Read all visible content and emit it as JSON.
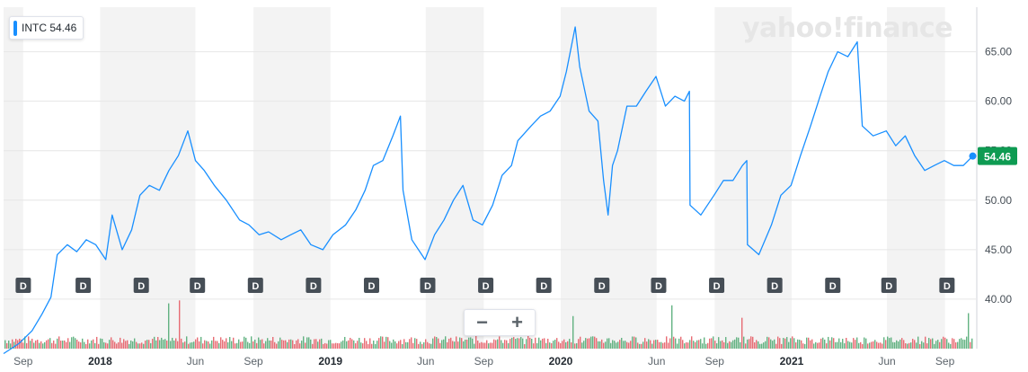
{
  "legend": {
    "label": "INTC 54.46"
  },
  "watermark": "yahoo!finance",
  "last_price_label": "54.46",
  "zoom": {
    "minus": "−",
    "plus": "+"
  },
  "colors": {
    "line": "#188fff",
    "shade": "#f3f3f3",
    "grid": "#e6e6e6",
    "price_badge": "#0e9b52",
    "dividend_marker": "#464e56",
    "volume_up": "#48a66c",
    "volume_down": "#e4525c"
  },
  "chart_data": {
    "type": "line",
    "title": "",
    "series": [
      {
        "name": "INTC",
        "x": [
          "2017-08-01",
          "2017-08-25",
          "2017-09-15",
          "2017-10-01",
          "2017-10-15",
          "2017-10-25",
          "2017-11-10",
          "2017-11-25",
          "2017-12-10",
          "2017-12-25",
          "2018-01-10",
          "2018-01-20",
          "2018-02-05",
          "2018-02-20",
          "2018-03-05",
          "2018-03-20",
          "2018-04-05",
          "2018-04-20",
          "2018-05-05",
          "2018-05-20",
          "2018-06-01",
          "2018-06-15",
          "2018-07-01",
          "2018-07-20",
          "2018-08-10",
          "2018-08-25",
          "2018-09-10",
          "2018-09-25",
          "2018-10-15",
          "2018-10-30",
          "2018-11-15",
          "2018-12-01",
          "2018-12-20",
          "2019-01-05",
          "2019-01-25",
          "2019-02-10",
          "2019-02-25",
          "2019-03-10",
          "2019-03-25",
          "2019-04-10",
          "2019-04-22",
          "2019-04-26",
          "2019-05-10",
          "2019-05-31",
          "2019-06-15",
          "2019-06-30",
          "2019-07-15",
          "2019-07-30",
          "2019-08-15",
          "2019-08-30",
          "2019-09-15",
          "2019-09-30",
          "2019-10-15",
          "2019-10-25",
          "2019-11-15",
          "2019-11-30",
          "2019-12-15",
          "2019-12-31",
          "2020-01-10",
          "2020-01-24",
          "2020-01-31",
          "2020-02-15",
          "2020-02-29",
          "2020-03-09",
          "2020-03-16",
          "2020-03-23",
          "2020-03-31",
          "2020-04-15",
          "2020-04-30",
          "2020-05-15",
          "2020-05-31",
          "2020-06-15",
          "2020-06-30",
          "2020-07-15",
          "2020-07-23",
          "2020-07-24",
          "2020-08-10",
          "2020-08-31",
          "2020-09-15",
          "2020-09-30",
          "2020-10-15",
          "2020-10-22",
          "2020-10-23",
          "2020-11-10",
          "2020-11-30",
          "2020-12-15",
          "2020-12-31",
          "2021-01-15",
          "2021-01-31",
          "2021-02-15",
          "2021-02-28",
          "2021-03-15",
          "2021-03-31",
          "2021-04-15",
          "2021-04-23",
          "2021-05-10",
          "2021-05-31",
          "2021-06-15",
          "2021-06-30",
          "2021-07-15",
          "2021-07-31",
          "2021-08-15",
          "2021-08-31",
          "2021-09-15",
          "2021-09-30",
          "2021-10-15"
        ],
        "values": [
          34.5,
          35.5,
          36.8,
          38.5,
          40.2,
          44.5,
          45.5,
          44.8,
          46.0,
          45.5,
          44.0,
          48.5,
          45.0,
          47.0,
          50.5,
          51.5,
          51.0,
          53.0,
          54.5,
          57.0,
          54.0,
          53.0,
          51.5,
          50.0,
          48.0,
          47.5,
          46.5,
          46.8,
          46.0,
          46.5,
          47.0,
          45.5,
          45.0,
          46.5,
          47.5,
          49.0,
          51.0,
          53.5,
          54.0,
          56.5,
          58.5,
          51.0,
          46.0,
          44.0,
          46.5,
          48.0,
          50.0,
          51.5,
          48.0,
          47.5,
          49.5,
          52.5,
          53.5,
          56.0,
          57.5,
          58.5,
          59.0,
          60.5,
          63.0,
          67.5,
          63.5,
          59.0,
          58.0,
          52.0,
          48.5,
          53.5,
          55.0,
          59.5,
          59.5,
          61.0,
          62.5,
          59.5,
          60.5,
          60.0,
          61.0,
          49.5,
          48.5,
          50.5,
          52.0,
          52.0,
          53.5,
          54.0,
          45.5,
          44.5,
          47.5,
          50.5,
          51.5,
          54.5,
          57.5,
          60.5,
          63.0,
          65.0,
          64.5,
          66.0,
          57.5,
          56.5,
          57.0,
          55.5,
          56.5,
          54.5,
          53.0,
          53.5,
          54.0,
          53.5,
          53.5,
          54.46
        ]
      }
    ],
    "xlabel": "",
    "ylabel": "",
    "xlim": [
      "2017-08-01",
      "2021-10-20"
    ],
    "ylim": [
      35,
      69.5
    ],
    "y_ticks": [
      40,
      45,
      50,
      55,
      60,
      65
    ],
    "y_tick_labels": [
      "40.00",
      "45.00",
      "50.00",
      "55.00",
      "60.00",
      "65.00"
    ],
    "y_axis_side": "right",
    "x_ticks": [
      {
        "date": "2017-09-01",
        "label": "Sep",
        "bold": false
      },
      {
        "date": "2018-01-01",
        "label": "2018",
        "bold": true
      },
      {
        "date": "2018-06-01",
        "label": "Jun",
        "bold": false
      },
      {
        "date": "2018-09-01",
        "label": "Sep",
        "bold": false
      },
      {
        "date": "2019-01-01",
        "label": "2019",
        "bold": true
      },
      {
        "date": "2019-06-01",
        "label": "Jun",
        "bold": false
      },
      {
        "date": "2019-09-01",
        "label": "Sep",
        "bold": false
      },
      {
        "date": "2020-01-01",
        "label": "2020",
        "bold": true
      },
      {
        "date": "2020-06-01",
        "label": "Jun",
        "bold": false
      },
      {
        "date": "2020-09-01",
        "label": "Sep",
        "bold": false
      },
      {
        "date": "2021-01-01",
        "label": "2021",
        "bold": true
      },
      {
        "date": "2021-06-01",
        "label": "Jun",
        "bold": false
      },
      {
        "date": "2021-09-01",
        "label": "Sep",
        "bold": false
      }
    ],
    "dividend_label": "D",
    "dividend_dates": [
      "2017-08-03",
      "2017-11-06",
      "2018-02-06",
      "2018-05-06",
      "2018-08-06",
      "2018-11-06",
      "2019-02-06",
      "2019-05-06",
      "2019-08-06",
      "2019-11-06",
      "2020-02-06",
      "2020-05-06",
      "2020-08-06",
      "2020-11-06",
      "2021-02-06",
      "2021-05-06",
      "2021-08-06"
    ],
    "grid": true,
    "legend": "top-left"
  }
}
